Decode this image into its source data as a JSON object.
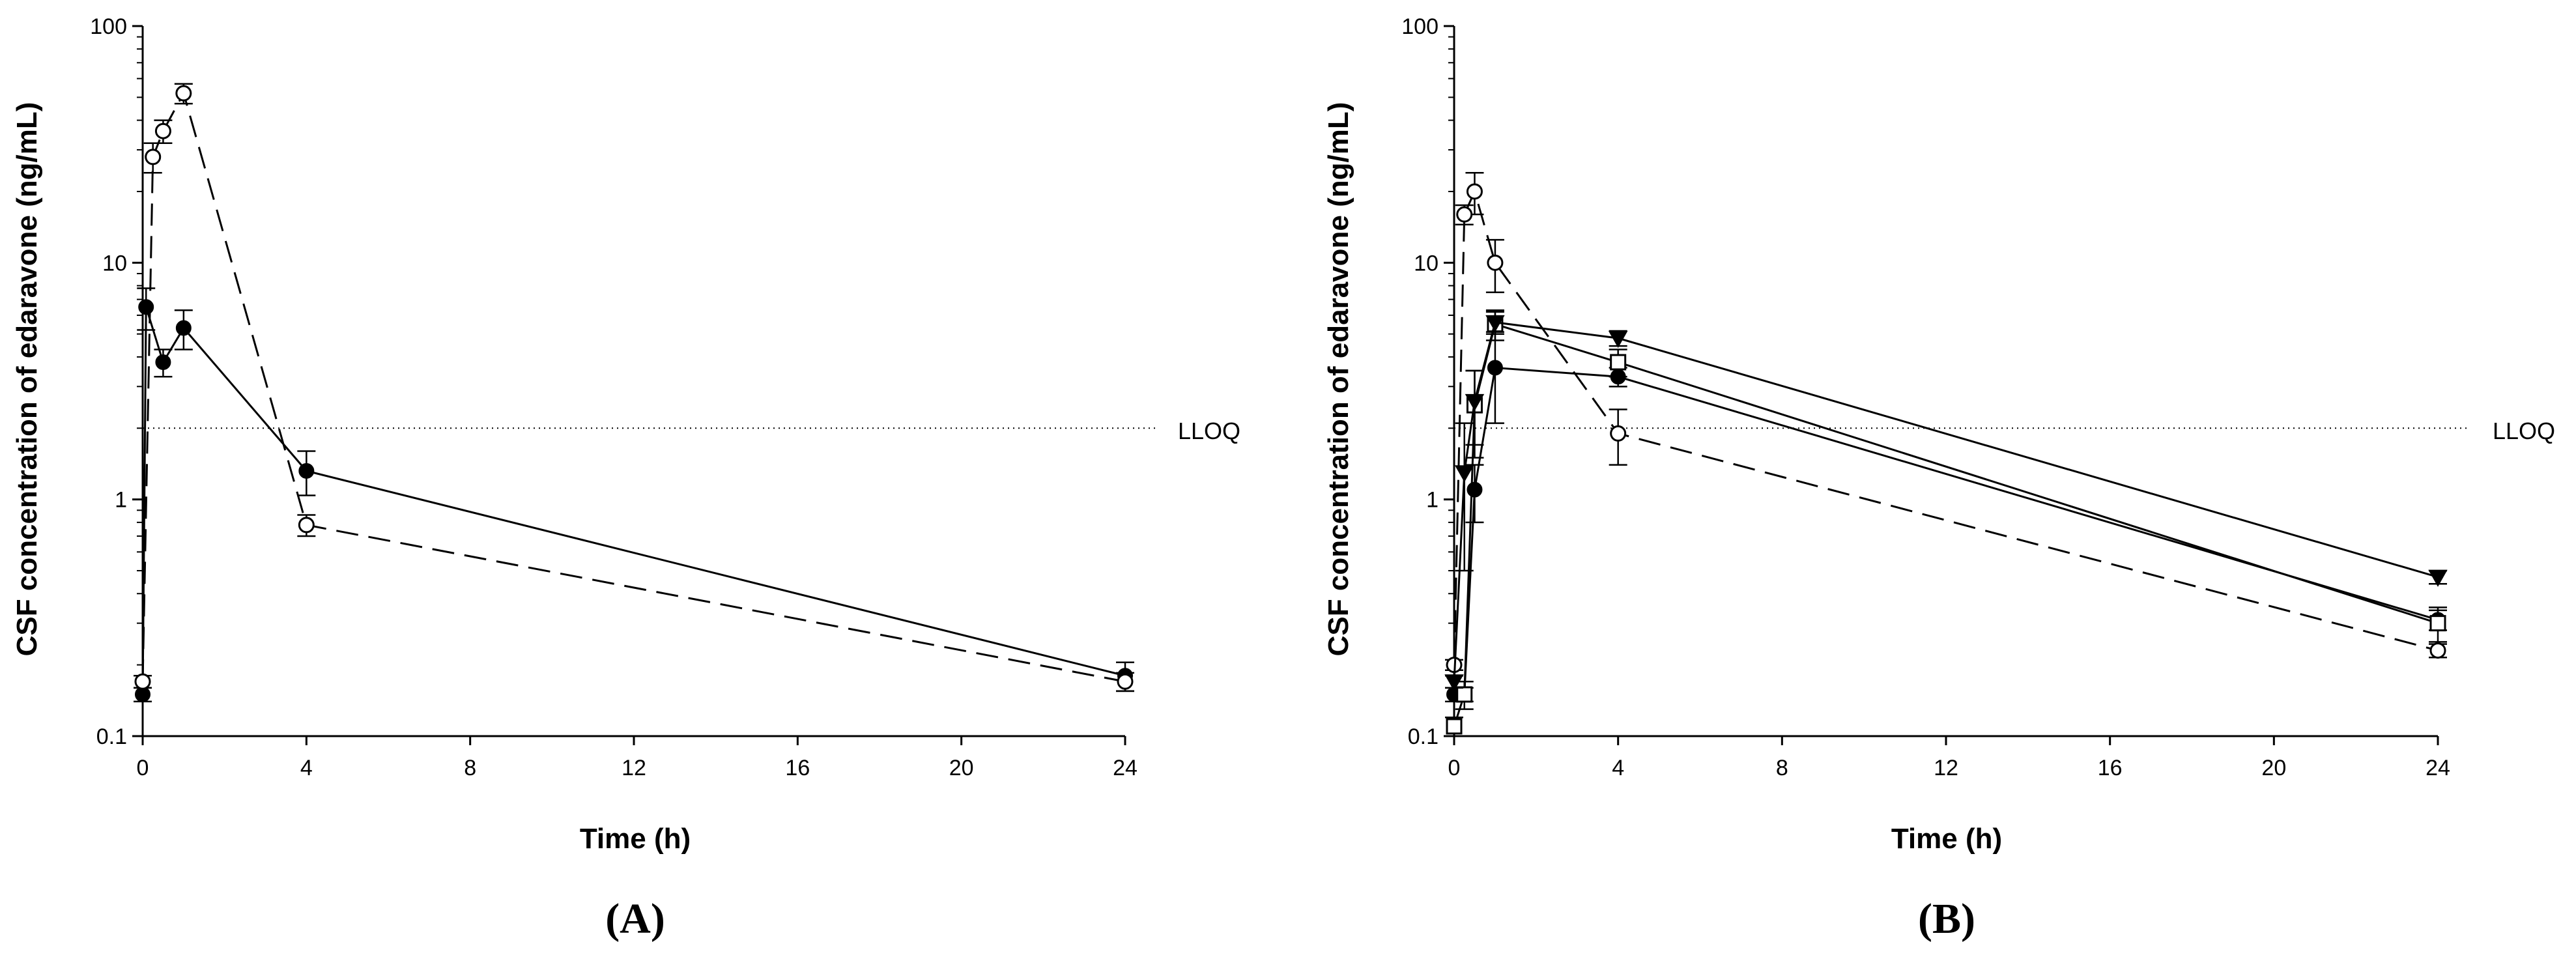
{
  "figure": {
    "panels": [
      {
        "id": "A",
        "panel_label": "(A)",
        "xlabel": "Time (h)",
        "ylabel": "CSF concentration of edaravone (ng/mL)",
        "lloq_label": "LLOQ"
      },
      {
        "id": "B",
        "panel_label": "(B)",
        "xlabel": "Time (h)",
        "ylabel": "CSF concentration of edaravone (ng/mL)",
        "lloq_label": "LLOQ"
      }
    ]
  },
  "chart_data": [
    {
      "type": "line",
      "panel": "A",
      "xlabel": "Time (h)",
      "ylabel": "CSF concentration of edaravone (ng/mL)",
      "y_scale": "log",
      "xlim": [
        0,
        24
      ],
      "ylim": [
        0.1,
        100
      ],
      "x_ticks": [
        "0",
        "4",
        "8",
        "12",
        "16",
        "20",
        "24"
      ],
      "y_ticks": [
        "0.1",
        "1",
        "10",
        "100"
      ],
      "reference_lines": [
        {
          "label": "LLOQ",
          "y": 2.0,
          "style": "dotted"
        }
      ],
      "grid": false,
      "legend": "none",
      "series": [
        {
          "marker": "filled-circle",
          "line": "solid",
          "x": [
            0,
            0.083,
            0.5,
            1,
            4,
            24
          ],
          "y": [
            0.15,
            6.5,
            3.8,
            5.3,
            1.32,
            0.18
          ],
          "err": [
            0.01,
            1.3,
            0.5,
            1.0,
            0.28,
            0.025
          ]
        },
        {
          "marker": "open-circle",
          "line": "dashed",
          "x": [
            0,
            0.25,
            0.5,
            1,
            4,
            24
          ],
          "y": [
            0.17,
            28,
            36,
            52,
            0.78,
            0.17
          ],
          "err": [
            0.01,
            4,
            4,
            5,
            0.08,
            0.015
          ]
        }
      ]
    },
    {
      "type": "line",
      "panel": "B",
      "xlabel": "Time (h)",
      "ylabel": "CSF concentration of edaravone (ng/mL)",
      "y_scale": "log",
      "xlim": [
        0,
        24
      ],
      "ylim": [
        0.1,
        100
      ],
      "x_ticks": [
        "0",
        "4",
        "8",
        "12",
        "16",
        "20",
        "24"
      ],
      "y_ticks": [
        "0.1",
        "1",
        "10",
        "100"
      ],
      "reference_lines": [
        {
          "label": "LLOQ",
          "y": 2.0,
          "style": "dotted"
        }
      ],
      "grid": false,
      "legend": "none",
      "series": [
        {
          "marker": "open-circle",
          "line": "dashed",
          "x": [
            0,
            0.25,
            0.5,
            1,
            4,
            24
          ],
          "y": [
            0.2,
            16,
            20,
            10,
            1.9,
            0.23
          ],
          "err": [
            0.01,
            1.5,
            4,
            2.5,
            0.5,
            0.015
          ]
        },
        {
          "marker": "filled-circle",
          "line": "solid",
          "x": [
            0,
            0.25,
            0.5,
            1,
            4,
            24
          ],
          "y": [
            0.15,
            0.15,
            1.1,
            3.6,
            3.3,
            0.31
          ],
          "err": [
            0.01,
            0.01,
            0.3,
            1.5,
            0.3,
            0.03
          ]
        },
        {
          "marker": "open-square",
          "line": "solid",
          "x": [
            0,
            0.25,
            0.5,
            1,
            4,
            24
          ],
          "y": [
            0.11,
            0.15,
            2.5,
            5.5,
            3.8,
            0.3
          ],
          "err": [
            0.01,
            0.02,
            1.0,
            0.8,
            0.5,
            0.05
          ]
        },
        {
          "marker": "filled-triangle-down",
          "line": "solid",
          "x": [
            0,
            0.25,
            0.5,
            1,
            4,
            24
          ],
          "y": [
            0.17,
            1.3,
            2.6,
            5.6,
            4.8,
            0.47
          ],
          "err": [
            0.01,
            0.8,
            0.9,
            0.6,
            0.35,
            0.03
          ]
        }
      ]
    }
  ]
}
